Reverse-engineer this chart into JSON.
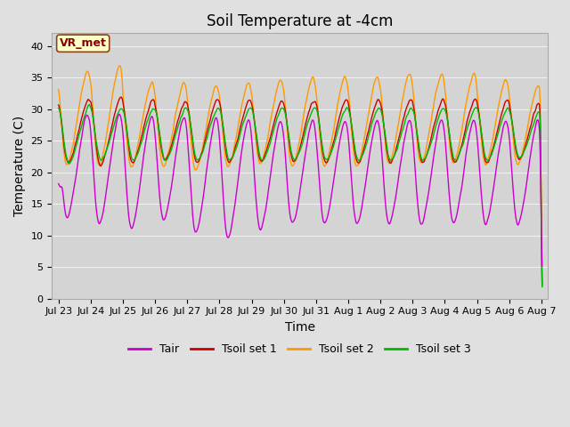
{
  "title": "Soil Temperature at -4cm",
  "xlabel": "Time",
  "ylabel": "Temperature (C)",
  "ylim": [
    0,
    42
  ],
  "yticks": [
    0,
    5,
    10,
    15,
    20,
    25,
    30,
    35,
    40
  ],
  "x_tick_labels": [
    "Jul 23",
    "Jul 24",
    "Jul 25",
    "Jul 26",
    "Jul 27",
    "Jul 28",
    "Jul 29",
    "Jul 30",
    "Jul 31",
    "Aug 1",
    "Aug 2",
    "Aug 3",
    "Aug 4",
    "Aug 5",
    "Aug 6",
    "Aug 7"
  ],
  "colors": {
    "Tair": "#cc00cc",
    "Tsoil1": "#cc0000",
    "Tsoil2": "#ff9900",
    "Tsoil3": "#00bb00"
  },
  "legend_labels": [
    "Tair",
    "Tsoil set 1",
    "Tsoil set 2",
    "Tsoil set 3"
  ],
  "annotation_text": "VR_met",
  "background_color": "#e0e0e0",
  "plot_bg_color": "#d4d4d4",
  "grid_color": "#f0f0f0",
  "title_fontsize": 12,
  "axis_label_fontsize": 10,
  "tick_label_fontsize": 8,
  "legend_fontsize": 9
}
